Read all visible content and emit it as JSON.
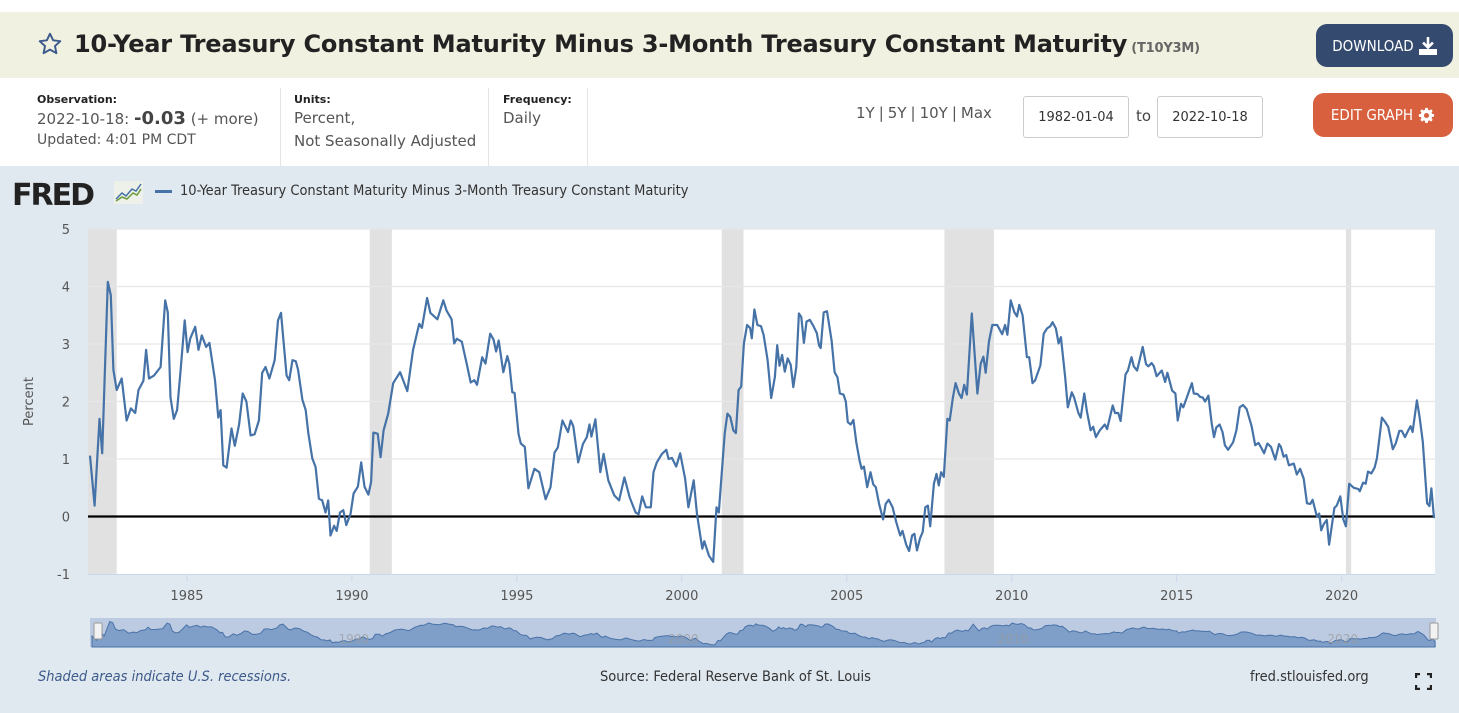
{
  "header": {
    "title": "10-Year Treasury Constant Maturity Minus 3-Month Treasury Constant Maturity",
    "series_id": "(T10Y3M)",
    "favorite_icon": "star-outline-icon",
    "download_label": "DOWNLOAD",
    "download_icon": "download-icon",
    "edit_label": "EDIT GRAPH",
    "edit_icon": "gear-icon"
  },
  "meta": {
    "observation_label": "Observation:",
    "observation_date": "2022-10-18:",
    "observation_value": "-0.03",
    "observation_more": "(+ more)",
    "updated": "Updated: 4:01 PM CDT",
    "units_label": "Units:",
    "units_line1": "Percent,",
    "units_line2": "Not Seasonally Adjusted",
    "frequency_label": "Frequency:",
    "frequency_value": "Daily"
  },
  "range_controls": {
    "options": [
      "1Y",
      "5Y",
      "10Y",
      "Max"
    ],
    "start_date": "1982-01-04",
    "to_label": "to",
    "end_date": "2022-10-18"
  },
  "graph": {
    "logo_text": "FRED",
    "logo_icon": "fred-sparkline-icon",
    "footer_note": "Shaded areas indicate U.S. recessions.",
    "source": "Source: Federal Reserve Bank of St. Louis",
    "site": "fred.stlouisfed.org",
    "fullscreen_icon": "fullscreen-icon"
  },
  "colors": {
    "series": "#4572a7",
    "recession": "#e1e1e1",
    "download_button": "#344b6f",
    "edit_button": "#d8603e",
    "title_bar": "#f1f1e1",
    "graph_bg": "#e1e9f0"
  },
  "chart_data": {
    "type": "line",
    "title": "",
    "xlabel": "",
    "ylabel": "Percent",
    "legend": [
      "10-Year Treasury Constant Maturity Minus 3-Month Treasury Constant Maturity"
    ],
    "legend_position": "top-left",
    "xlim": [
      1982.0,
      2022.83
    ],
    "ylim": [
      -1,
      5
    ],
    "grid": true,
    "x_ticks": [
      1985,
      1990,
      1995,
      2000,
      2005,
      2010,
      2015,
      2020
    ],
    "y_ticks": [
      -1,
      0,
      1,
      2,
      3,
      4,
      5
    ],
    "zero_line": 0,
    "recessions": [
      [
        1982.0,
        1982.87
      ],
      [
        1990.54,
        1991.21
      ],
      [
        2001.21,
        2001.87
      ],
      [
        2007.96,
        2009.46
      ],
      [
        2020.13,
        2020.29
      ]
    ],
    "navigator_labels": [
      "1990",
      "2000",
      "2010",
      "2020"
    ],
    "series": [
      {
        "name": "10-Year Treasury Constant Maturity Minus 3-Month Treasury Constant Maturity",
        "x": [
          1982.06,
          1982.2,
          1982.35,
          1982.43,
          1982.6,
          1982.69,
          1982.77,
          1982.87,
          1983.02,
          1983.17,
          1983.3,
          1983.43,
          1983.53,
          1983.68,
          1983.76,
          1983.85,
          1984.0,
          1984.2,
          1984.34,
          1984.42,
          1984.5,
          1984.6,
          1984.7,
          1984.8,
          1984.93,
          1985.02,
          1985.1,
          1985.25,
          1985.35,
          1985.45,
          1985.58,
          1985.68,
          1985.85,
          1985.95,
          1986.02,
          1986.1,
          1986.2,
          1986.35,
          1986.45,
          1986.58,
          1986.69,
          1986.8,
          1986.93,
          1987.05,
          1987.18,
          1987.28,
          1987.38,
          1987.5,
          1987.66,
          1987.76,
          1987.85,
          1988.02,
          1988.1,
          1988.2,
          1988.3,
          1988.37,
          1988.5,
          1988.6,
          1988.68,
          1988.8,
          1988.9,
          1989.0,
          1989.1,
          1989.2,
          1989.28,
          1989.35,
          1989.46,
          1989.54,
          1989.64,
          1989.74,
          1989.83,
          1989.96,
          1990.05,
          1990.18,
          1990.28,
          1990.38,
          1990.5,
          1990.58,
          1990.65,
          1990.78,
          1990.87,
          1990.96,
          1991.1,
          1991.25,
          1991.46,
          1991.68,
          1991.85,
          1992.04,
          1992.12,
          1992.28,
          1992.38,
          1992.59,
          1992.77,
          1992.87,
          1993.02,
          1993.1,
          1993.18,
          1993.33,
          1993.47,
          1993.6,
          1993.71,
          1993.79,
          1993.95,
          1994.05,
          1994.19,
          1994.29,
          1994.37,
          1994.45,
          1994.59,
          1994.71,
          1994.77,
          1994.86,
          1994.93,
          1995.05,
          1995.12,
          1995.24,
          1995.35,
          1995.53,
          1995.68,
          1995.87,
          1996.02,
          1996.14,
          1996.24,
          1996.38,
          1996.55,
          1996.63,
          1996.71,
          1996.86,
          1997.0,
          1997.12,
          1997.2,
          1997.26,
          1997.38,
          1997.53,
          1997.63,
          1997.77,
          1997.95,
          1998.1,
          1998.26,
          1998.42,
          1998.6,
          1998.69,
          1998.8,
          1998.91,
          1999.06,
          1999.14,
          1999.24,
          1999.4,
          1999.53,
          1999.6,
          1999.7,
          1999.83,
          1999.95,
          2000.1,
          2000.2,
          2000.36,
          2000.46,
          2000.62,
          2000.68,
          2000.82,
          2000.95,
          2001.05,
          2001.12,
          2001.3,
          2001.38,
          2001.47,
          2001.56,
          2001.64,
          2001.72,
          2001.8,
          2001.88,
          2001.98,
          2002.07,
          2002.12,
          2002.2,
          2002.29,
          2002.4,
          2002.48,
          2002.6,
          2002.71,
          2002.82,
          2002.89,
          2002.96,
          2003.04,
          2003.12,
          2003.21,
          2003.3,
          2003.38,
          2003.47,
          2003.55,
          2003.62,
          2003.7,
          2003.78,
          2003.88,
          2003.99,
          2004.09,
          2004.16,
          2004.21,
          2004.3,
          2004.4,
          2004.54,
          2004.63,
          2004.72,
          2004.79,
          2004.9,
          2004.97,
          2005.03,
          2005.12,
          2005.2,
          2005.29,
          2005.39,
          2005.45,
          2005.52,
          2005.62,
          2005.72,
          2005.8,
          2005.88,
          2005.98,
          2006.1,
          2006.18,
          2006.27,
          2006.39,
          2006.5,
          2006.62,
          2006.69,
          2006.8,
          2006.89,
          2006.98,
          2007.05,
          2007.13,
          2007.22,
          2007.3,
          2007.38,
          2007.46,
          2007.53,
          2007.64,
          2007.72,
          2007.79,
          2007.86,
          2007.94,
          2008.05,
          2008.12,
          2008.22,
          2008.3,
          2008.4,
          2008.48,
          2008.56,
          2008.64,
          2008.79,
          2008.96,
          2009.06,
          2009.14,
          2009.21,
          2009.31,
          2009.41,
          2009.56,
          2009.71,
          2009.8,
          2009.87,
          2009.97,
          2010.08,
          2010.16,
          2010.23,
          2010.33,
          2010.46,
          2010.53,
          2010.63,
          2010.71,
          2010.87,
          2010.97,
          2011.07,
          2011.17,
          2011.24,
          2011.34,
          2011.42,
          2011.49,
          2011.62,
          2011.7,
          2011.82,
          2011.89,
          2012.02,
          2012.09,
          2012.2,
          2012.28,
          2012.39,
          2012.47,
          2012.55,
          2012.67,
          2012.82,
          2012.89,
          2013.06,
          2013.13,
          2013.23,
          2013.3,
          2013.45,
          2013.52,
          2013.63,
          2013.7,
          2013.8,
          2013.97,
          2014.07,
          2014.14,
          2014.24,
          2014.31,
          2014.39,
          2014.55,
          2014.65,
          2014.72,
          2014.86,
          2014.96,
          2015.03,
          2015.13,
          2015.2,
          2015.33,
          2015.46,
          2015.52,
          2015.63,
          2015.71,
          2015.79,
          2015.86,
          2015.96,
          2016.06,
          2016.13,
          2016.2,
          2016.3,
          2016.39,
          2016.46,
          2016.56,
          2016.71,
          2016.81,
          2016.91,
          2017.01,
          2017.12,
          2017.27,
          2017.38,
          2017.48,
          2017.55,
          2017.65,
          2017.75,
          2017.86,
          2017.99,
          2018.1,
          2018.16,
          2018.24,
          2018.32,
          2018.4,
          2018.55,
          2018.64,
          2018.74,
          2018.85,
          2018.95,
          2019.05,
          2019.12,
          2019.25,
          2019.32,
          2019.38,
          2019.46,
          2019.55,
          2019.62,
          2019.78,
          2019.85,
          2019.96,
          2020.05,
          2020.13,
          2020.23,
          2020.37,
          2020.5,
          2020.55,
          2020.65,
          2020.73,
          2020.8,
          2020.9,
          2021.0,
          2021.07,
          2021.22,
          2021.31,
          2021.41,
          2021.55,
          2021.64,
          2021.75,
          2021.82,
          2021.92,
          2022.02,
          2022.09,
          2022.15,
          2022.28,
          2022.36,
          2022.46,
          2022.59,
          2022.66,
          2022.72,
          2022.8
        ],
        "y": [
          1.06,
          0.19,
          1.7,
          1.1,
          4.08,
          3.85,
          2.55,
          2.2,
          2.4,
          1.67,
          1.88,
          1.8,
          2.2,
          2.36,
          2.9,
          2.4,
          2.45,
          2.6,
          3.76,
          3.55,
          2.07,
          1.7,
          1.85,
          2.5,
          3.41,
          2.86,
          3.1,
          3.3,
          2.9,
          3.15,
          2.95,
          3.02,
          2.37,
          1.72,
          1.85,
          0.89,
          0.85,
          1.53,
          1.23,
          1.6,
          2.14,
          2.0,
          1.41,
          1.43,
          1.67,
          2.5,
          2.6,
          2.4,
          2.72,
          3.41,
          3.54,
          2.45,
          2.37,
          2.72,
          2.7,
          2.55,
          2.03,
          1.85,
          1.44,
          1.01,
          0.86,
          0.31,
          0.28,
          0.07,
          0.28,
          -0.33,
          -0.16,
          -0.25,
          0.07,
          0.11,
          -0.15,
          0.05,
          0.4,
          0.52,
          0.94,
          0.52,
          0.38,
          0.6,
          1.46,
          1.44,
          1.03,
          1.5,
          1.79,
          2.32,
          2.51,
          2.18,
          2.89,
          3.35,
          3.28,
          3.8,
          3.54,
          3.43,
          3.76,
          3.58,
          3.43,
          3.01,
          3.09,
          3.04,
          2.68,
          2.33,
          2.37,
          2.29,
          2.77,
          2.66,
          3.18,
          3.08,
          2.87,
          3.06,
          2.51,
          2.79,
          2.66,
          2.16,
          2.15,
          1.44,
          1.27,
          1.21,
          0.49,
          0.83,
          0.77,
          0.3,
          0.51,
          1.11,
          1.2,
          1.67,
          1.47,
          1.67,
          1.57,
          0.94,
          1.26,
          1.38,
          1.6,
          1.39,
          1.69,
          0.77,
          1.09,
          0.63,
          0.37,
          0.28,
          0.68,
          0.33,
          0.07,
          0.04,
          0.35,
          0.16,
          0.16,
          0.77,
          0.94,
          1.09,
          1.16,
          1.0,
          1.02,
          0.87,
          1.1,
          0.66,
          0.16,
          0.63,
          0.04,
          -0.56,
          -0.43,
          -0.68,
          -0.79,
          0.16,
          0.07,
          1.44,
          1.79,
          1.73,
          1.5,
          1.45,
          2.2,
          2.26,
          3.01,
          3.33,
          3.28,
          3.1,
          3.6,
          3.33,
          3.31,
          3.16,
          2.72,
          2.06,
          2.43,
          2.98,
          2.62,
          2.81,
          2.52,
          2.75,
          2.64,
          2.25,
          2.6,
          3.53,
          3.47,
          3.02,
          3.39,
          3.42,
          3.31,
          3.19,
          2.97,
          2.93,
          3.55,
          3.57,
          3.06,
          2.51,
          2.42,
          2.14,
          2.12,
          2.0,
          1.64,
          1.6,
          1.68,
          1.29,
          0.97,
          0.83,
          0.87,
          0.51,
          0.77,
          0.56,
          0.51,
          0.22,
          -0.05,
          0.22,
          0.29,
          0.16,
          -0.1,
          -0.33,
          -0.25,
          -0.49,
          -0.6,
          -0.33,
          -0.3,
          -0.59,
          -0.38,
          -0.27,
          0.16,
          0.19,
          -0.17,
          0.57,
          0.74,
          0.54,
          0.77,
          0.69,
          1.7,
          1.67,
          2.08,
          2.32,
          2.14,
          2.06,
          2.29,
          2.12,
          3.53,
          2.14,
          2.66,
          2.78,
          2.5,
          3.05,
          3.33,
          3.33,
          3.17,
          3.33,
          3.16,
          3.76,
          3.55,
          3.48,
          3.68,
          3.5,
          2.77,
          2.77,
          2.32,
          2.37,
          2.63,
          3.18,
          3.27,
          3.31,
          3.38,
          3.27,
          3.01,
          3.12,
          2.42,
          1.9,
          2.16,
          2.07,
          1.8,
          1.72,
          2.14,
          1.82,
          1.5,
          1.56,
          1.38,
          1.5,
          1.6,
          1.52,
          1.93,
          1.8,
          1.8,
          1.66,
          2.47,
          2.54,
          2.77,
          2.61,
          2.54,
          2.95,
          2.65,
          2.61,
          2.67,
          2.61,
          2.44,
          2.54,
          2.34,
          2.5,
          2.19,
          2.14,
          1.67,
          1.96,
          1.9,
          2.11,
          2.32,
          2.14,
          2.13,
          2.08,
          2.07,
          2.0,
          2.1,
          1.62,
          1.38,
          1.55,
          1.6,
          1.47,
          1.24,
          1.16,
          1.29,
          1.5,
          1.9,
          1.94,
          1.87,
          1.57,
          1.24,
          1.28,
          1.21,
          1.1,
          1.27,
          1.21,
          0.99,
          1.26,
          1.21,
          1.04,
          1.07,
          0.89,
          0.92,
          0.73,
          0.83,
          0.66,
          0.23,
          0.22,
          0.29,
          0.0,
          0.05,
          -0.24,
          -0.13,
          -0.06,
          -0.49,
          0.15,
          0.19,
          0.35,
          -0.05,
          -0.17,
          0.57,
          0.5,
          0.48,
          0.44,
          0.59,
          0.57,
          0.78,
          0.75,
          0.85,
          1.01,
          1.72,
          1.65,
          1.56,
          1.17,
          1.27,
          1.49,
          1.49,
          1.38,
          1.5,
          1.57,
          1.47,
          2.02,
          1.74,
          1.3,
          0.23,
          0.18,
          0.49,
          -0.03
        ]
      }
    ]
  }
}
